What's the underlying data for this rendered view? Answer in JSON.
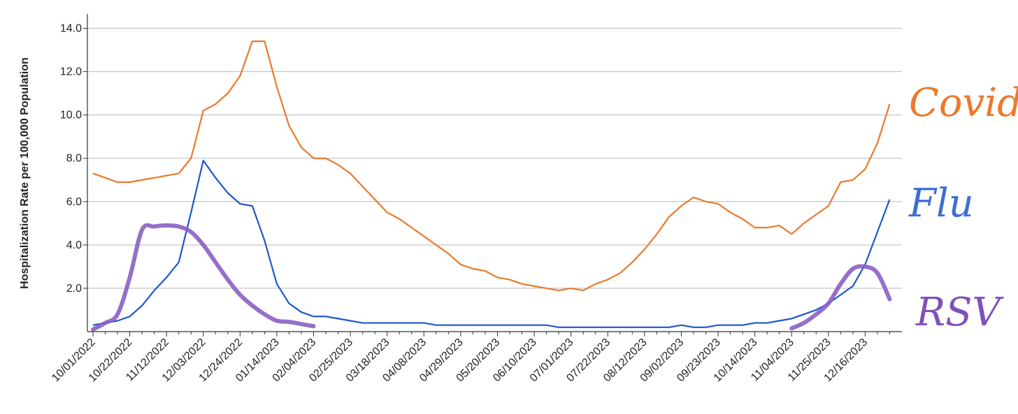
{
  "chart_data": {
    "type": "line",
    "title": "",
    "xlabel": "",
    "ylabel": "Hospitalization Rate per 100,000 Population",
    "ylim": [
      0,
      14.5
    ],
    "y_ticks": [
      "2.0",
      "4.0",
      "6.0",
      "8.0",
      "10.0",
      "12.0",
      "14.0"
    ],
    "y_tick_values": [
      2,
      4,
      6,
      8,
      10,
      12,
      14
    ],
    "grid": "horizontal",
    "x_tick_labels": [
      "10/01/2022",
      "10/22/2022",
      "11/12/2022",
      "12/03/2022",
      "12/24/2022",
      "01/14/2023",
      "02/04/2023",
      "02/25/2023",
      "03/18/2023",
      "04/08/2023",
      "04/29/2023",
      "05/20/2023",
      "06/10/2023",
      "07/01/2023",
      "07/22/2023",
      "08/12/2023",
      "09/02/2023",
      "09/23/2023",
      "10/14/2023",
      "11/04/2023",
      "11/25/2023",
      "12/16/2023"
    ],
    "week_count": 66,
    "series": [
      {
        "name": "Covid",
        "color": "#ea7a2c",
        "values": [
          7.3,
          7.1,
          6.9,
          6.9,
          7.0,
          7.1,
          7.2,
          7.3,
          8.0,
          10.2,
          10.5,
          11.0,
          11.8,
          13.4,
          13.4,
          11.3,
          9.5,
          8.5,
          8.0,
          8.0,
          7.7,
          7.3,
          6.7,
          6.1,
          5.5,
          5.2,
          4.8,
          4.4,
          4.0,
          3.6,
          3.1,
          2.9,
          2.8,
          2.5,
          2.4,
          2.2,
          2.1,
          2.0,
          1.9,
          2.0,
          1.9,
          2.2,
          2.4,
          2.7,
          3.2,
          3.8,
          4.5,
          5.3,
          5.8,
          6.2,
          6.0,
          5.9,
          5.5,
          5.2,
          4.8,
          4.8,
          4.9,
          4.5,
          5.0,
          5.4,
          5.8,
          6.9,
          7.0,
          7.5,
          8.7,
          10.5
        ]
      },
      {
        "name": "Flu",
        "color": "#1f57cc",
        "values": [
          0.3,
          0.4,
          0.5,
          0.7,
          1.2,
          1.9,
          2.5,
          3.2,
          5.5,
          7.9,
          7.1,
          6.4,
          5.9,
          5.8,
          4.2,
          2.2,
          1.3,
          0.9,
          0.7,
          0.7,
          0.6,
          0.5,
          0.4,
          0.4,
          0.4,
          0.4,
          0.4,
          0.4,
          0.3,
          0.3,
          0.3,
          0.3,
          0.3,
          0.3,
          0.3,
          0.3,
          0.3,
          0.3,
          0.2,
          0.2,
          0.2,
          0.2,
          0.2,
          0.2,
          0.2,
          0.2,
          0.2,
          0.2,
          0.3,
          0.2,
          0.2,
          0.3,
          0.3,
          0.3,
          0.4,
          0.4,
          0.5,
          0.6,
          0.8,
          1.0,
          1.3,
          1.7,
          2.1,
          3.1,
          4.6,
          6.1
        ]
      },
      {
        "name": "RSV",
        "color": "#8a5fc2",
        "segments": [
          {
            "x": [
              0,
              1,
              2,
              3,
              4,
              5,
              6,
              7,
              8,
              9,
              10,
              11,
              12,
              13,
              14,
              15,
              16,
              17,
              18
            ],
            "values": [
              0.1,
              0.4,
              0.8,
              2.5,
              4.7,
              4.85,
              4.9,
              4.85,
              4.6,
              4.0,
              3.2,
              2.4,
              1.7,
              1.2,
              0.8,
              0.5,
              0.45,
              0.35,
              0.25
            ]
          },
          {
            "x": [
              57,
              58,
              59,
              60,
              61,
              62,
              63,
              64,
              65
            ],
            "values": [
              0.15,
              0.4,
              0.8,
              1.3,
              2.2,
              2.9,
              3.0,
              2.7,
              1.5
            ]
          }
        ]
      }
    ],
    "annotations": [
      {
        "text": "Covid",
        "color": "#ea7a2c"
      },
      {
        "text": "Flu",
        "color": "#3e6fd4"
      },
      {
        "text": "RSV",
        "color": "#7e52b8"
      }
    ]
  }
}
